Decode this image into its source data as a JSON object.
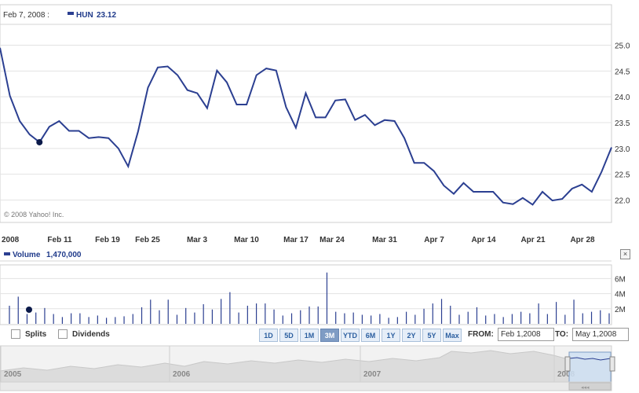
{
  "header": {
    "date_label": "Feb 7, 2008 :",
    "ticker": "HUN",
    "price": "23.12",
    "copyright": "© 2008 Yahoo! Inc."
  },
  "volume_header": {
    "label": "Volume",
    "value": "1,470,000",
    "close_glyph": "×"
  },
  "controls": {
    "splits_label": "Splits",
    "dividends_label": "Dividends",
    "ranges": [
      "1D",
      "5D",
      "1M",
      "3M",
      "YTD",
      "6M",
      "1Y",
      "2Y",
      "5Y",
      "Max"
    ],
    "selected_range": "3M",
    "from_label": "FROM:",
    "from_value": "Feb 1,2008",
    "to_label": "TO:",
    "to_value": "May 1,2008"
  },
  "navigator": {
    "years": [
      "2005",
      "2006",
      "2007",
      "2008"
    ]
  },
  "colors": {
    "line": "#2b3f91",
    "grid": "#e3e3e3",
    "marker": "#0b1a4a",
    "navigator_fill": "#dcdcdc",
    "selection_fill": "#cfe0f3"
  },
  "chart_data": [
    {
      "type": "line",
      "title": "HUN 23.12",
      "x_tick_labels": [
        "2008",
        "Feb 11",
        "Feb 19",
        "Feb 25",
        "Mar 3",
        "Mar 10",
        "Mar 17",
        "Mar 24",
        "Mar 31",
        "Apr 7",
        "Apr 14",
        "Apr 21",
        "Apr 28"
      ],
      "y_tick_labels": [
        "22.0",
        "22.5",
        "23.0",
        "23.5",
        "24.0",
        "24.5",
        "25.0"
      ],
      "ylim": [
        21.55,
        25.45
      ],
      "grid": true,
      "hover_marker": {
        "date": "Feb 7",
        "value": 23.12
      },
      "series": [
        {
          "name": "HUN",
          "values": [
            24.95,
            24.02,
            23.53,
            23.27,
            23.12,
            23.42,
            23.53,
            23.34,
            23.34,
            23.2,
            23.22,
            23.2,
            23.0,
            22.65,
            23.33,
            24.18,
            24.57,
            24.59,
            24.42,
            24.13,
            24.07,
            23.78,
            24.51,
            24.28,
            23.85,
            23.85,
            24.42,
            24.55,
            24.51,
            23.8,
            23.4,
            24.07,
            23.6,
            23.6,
            23.93,
            23.95,
            23.55,
            23.65,
            23.45,
            23.55,
            23.53,
            23.2,
            22.72,
            22.72,
            22.56,
            22.28,
            22.12,
            22.33,
            22.16,
            22.16,
            22.16,
            21.95,
            21.92,
            22.04,
            21.91,
            22.16,
            21.99,
            22.02,
            22.22,
            22.3,
            22.16,
            22.55,
            23.02
          ]
        }
      ]
    },
    {
      "type": "bar",
      "title": "Volume 1,470,000",
      "y_tick_labels": [
        "2M",
        "4M",
        "6M"
      ],
      "ylim": [
        0,
        7.5
      ],
      "hover_marker": {
        "date": "Feb 7",
        "value": 1.47
      },
      "series": [
        {
          "name": "Volume",
          "unit": "M",
          "values": [
            2.4,
            3.6,
            1.3,
            1.5,
            2.1,
            1.3,
            0.9,
            1.4,
            1.4,
            0.9,
            1.1,
            0.8,
            0.9,
            1.0,
            1.3,
            2.2,
            3.2,
            1.8,
            3.2,
            1.2,
            2.1,
            1.5,
            2.6,
            1.9,
            3.3,
            4.2,
            1.5,
            2.4,
            2.7,
            2.7,
            1.9,
            1.1,
            1.4,
            1.8,
            2.3,
            2.3,
            6.8,
            1.6,
            1.4,
            1.5,
            1.2,
            1.1,
            1.3,
            0.8,
            0.9,
            1.6,
            1.2,
            2.0,
            2.7,
            3.3,
            2.4,
            1.2,
            1.6,
            2.2,
            1.1,
            1.3,
            0.9,
            1.3,
            1.6,
            1.4,
            2.7,
            1.3,
            2.9,
            1.2,
            3.2,
            1.4,
            1.6,
            1.8,
            1.4
          ]
        }
      ]
    }
  ]
}
